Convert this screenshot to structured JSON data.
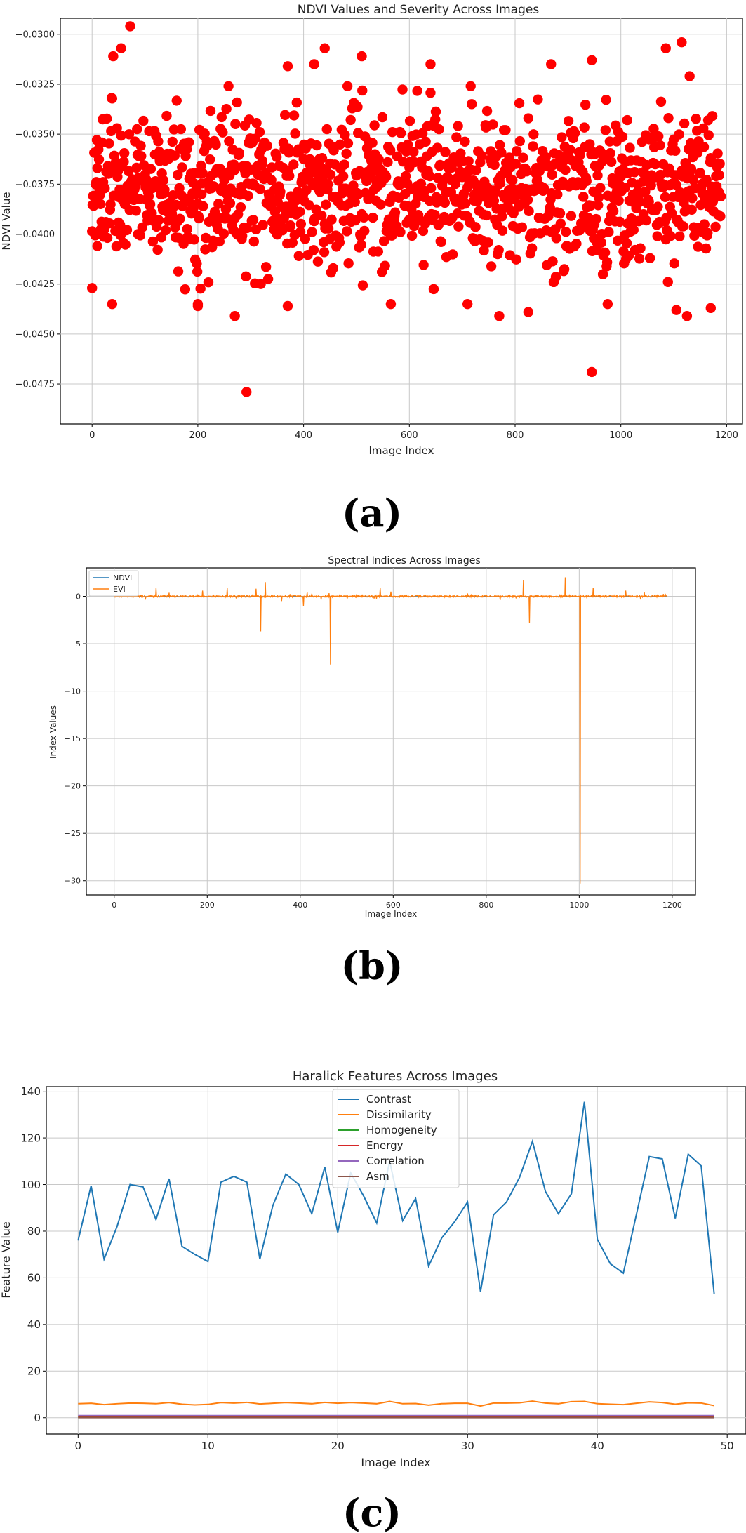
{
  "colors": {
    "ndvi_points": "#ff0000",
    "ndvi_line": "#1f77b4",
    "evi_line": "#ff7f0e",
    "contrast": "#1f77b4",
    "dissimilarity": "#ff7f0e",
    "homogeneity": "#2ca02c",
    "energy": "#d62728",
    "correlation": "#9467bd",
    "asm": "#8c564b"
  },
  "chart_data": [
    {
      "type": "scatter",
      "label": "(a)",
      "title": "NDVI Values and Severity Across Images",
      "xlabel": "Image Index",
      "ylabel": "NDVI Value",
      "xlim": [
        -60,
        1230
      ],
      "ylim": [
        -0.0495,
        -0.0292
      ],
      "xticks": [
        0,
        200,
        400,
        600,
        800,
        1000,
        1200
      ],
      "yticks": [
        -0.0475,
        -0.045,
        -0.0425,
        -0.04,
        -0.0375,
        -0.035,
        -0.0325,
        -0.03
      ],
      "ytick_labels": [
        "−0.0475",
        "−0.0450",
        "−0.0425",
        "−0.0400",
        "−0.0375",
        "−0.0350",
        "−0.0325",
        "−0.0300"
      ],
      "grid": true,
      "n_points": 1190,
      "points_summary": "dense cloud, mostly between -0.0425 and -0.0330, centered near -0.0375",
      "notable_points": [
        {
          "x": 72,
          "y": -0.0296
        },
        {
          "x": 1115,
          "y": -0.0304
        },
        {
          "x": 55,
          "y": -0.0307
        },
        {
          "x": 440,
          "y": -0.0307
        },
        {
          "x": 1085,
          "y": -0.0307
        },
        {
          "x": 40,
          "y": -0.0311
        },
        {
          "x": 510,
          "y": -0.0311
        },
        {
          "x": 945,
          "y": -0.0313
        },
        {
          "x": 420,
          "y": -0.0315
        },
        {
          "x": 640,
          "y": -0.0315
        },
        {
          "x": 868,
          "y": -0.0315
        },
        {
          "x": 370,
          "y": -0.0316
        },
        {
          "x": 1130,
          "y": -0.0321
        },
        {
          "x": 292,
          "y": -0.0479
        },
        {
          "x": 945,
          "y": -0.0469
        },
        {
          "x": 270,
          "y": -0.0441
        },
        {
          "x": 770,
          "y": -0.0441
        },
        {
          "x": 1125,
          "y": -0.0441
        },
        {
          "x": 825,
          "y": -0.0439
        },
        {
          "x": 1105,
          "y": -0.0438
        },
        {
          "x": 1170,
          "y": -0.0437
        },
        {
          "x": 370,
          "y": -0.0436
        },
        {
          "x": 38,
          "y": -0.0435
        },
        {
          "x": 200,
          "y": -0.0435
        },
        {
          "x": 565,
          "y": -0.0435
        },
        {
          "x": 710,
          "y": -0.0435
        },
        {
          "x": 975,
          "y": -0.0435
        },
        {
          "x": 0,
          "y": -0.0427
        },
        {
          "x": 200,
          "y": -0.0436
        },
        {
          "x": 10,
          "y": -0.0406
        }
      ]
    },
    {
      "type": "line",
      "label": "(b)",
      "title": "Spectral Indices Across Images",
      "xlabel": "Image Index",
      "ylabel": "Index Values",
      "xlim": [
        -60,
        1250
      ],
      "ylim": [
        -31.5,
        3.0
      ],
      "xticks": [
        0,
        200,
        400,
        600,
        800,
        1000,
        1200
      ],
      "yticks": [
        -30,
        -25,
        -20,
        -15,
        -10,
        -5,
        0
      ],
      "ytick_labels": [
        "−30",
        "−25",
        "−20",
        "−15",
        "−10",
        "−5",
        "0"
      ],
      "grid": true,
      "legend": "top-left",
      "series": [
        {
          "name": "NDVI",
          "baseline": -0.04
        },
        {
          "name": "EVI",
          "baseline": 0.0,
          "spikes": [
            {
              "x": 90,
              "y": 0.9
            },
            {
              "x": 190,
              "y": 0.6
            },
            {
              "x": 243,
              "y": 0.9
            },
            {
              "x": 305,
              "y": 0.8
            },
            {
              "x": 315,
              "y": -3.7
            },
            {
              "x": 325,
              "y": 1.5
            },
            {
              "x": 360,
              "y": -0.5
            },
            {
              "x": 407,
              "y": -1.0
            },
            {
              "x": 415,
              "y": 0.4
            },
            {
              "x": 465,
              "y": -7.2
            },
            {
              "x": 572,
              "y": 0.9
            },
            {
              "x": 595,
              "y": 0.5
            },
            {
              "x": 760,
              "y": 0.3
            },
            {
              "x": 830,
              "y": -0.4
            },
            {
              "x": 880,
              "y": 1.7
            },
            {
              "x": 893,
              "y": -2.8
            },
            {
              "x": 970,
              "y": 2.0
            },
            {
              "x": 1002,
              "y": -30.3
            },
            {
              "x": 1030,
              "y": 0.9
            },
            {
              "x": 1100,
              "y": 0.6
            },
            {
              "x": 1140,
              "y": 0.4
            }
          ]
        }
      ]
    },
    {
      "type": "line",
      "label": "(c)",
      "title": "Haralick Features Across Images",
      "xlabel": "Image Index",
      "ylabel": "Feature Value",
      "xlim": [
        -2.45,
        51.45
      ],
      "ylim": [
        -7,
        142
      ],
      "xticks": [
        0,
        10,
        20,
        30,
        40,
        50
      ],
      "yticks": [
        0,
        20,
        40,
        60,
        80,
        100,
        120,
        140
      ],
      "grid": true,
      "legend": "top-center",
      "x": [
        0,
        1,
        2,
        3,
        4,
        5,
        6,
        7,
        8,
        9,
        10,
        11,
        12,
        13,
        14,
        15,
        16,
        17,
        18,
        19,
        20,
        21,
        22,
        23,
        24,
        25,
        26,
        27,
        28,
        29,
        30,
        31,
        32,
        33,
        34,
        35,
        36,
        37,
        38,
        39,
        40,
        41,
        42,
        43,
        44,
        45,
        46,
        47,
        48,
        49
      ],
      "series": [
        {
          "name": "Contrast",
          "values": [
            76,
            99.5,
            68,
            82,
            100,
            99,
            85,
            102.5,
            73.5,
            70,
            67,
            101,
            103.5,
            101,
            68,
            91,
            104.5,
            100,
            87.5,
            107.5,
            79.5,
            105,
            95,
            83.5,
            110,
            84.5,
            94,
            65,
            77,
            84,
            92.5,
            54,
            87,
            92.5,
            103,
            118.5,
            97,
            87.5,
            96,
            135.5,
            76.5,
            66,
            62,
            87,
            112,
            111,
            85.5,
            113,
            108,
            53
          ]
        },
        {
          "name": "Dissimilarity",
          "values": [
            6,
            6.2,
            5.6,
            6,
            6.3,
            6.2,
            6,
            6.5,
            5.8,
            5.5,
            5.7,
            6.5,
            6.3,
            6.6,
            5.9,
            6.2,
            6.5,
            6.3,
            6,
            6.6,
            6.2,
            6.5,
            6.3,
            6,
            7,
            6,
            6.1,
            5.4,
            6,
            6.2,
            6.2,
            5,
            6.3,
            6.3,
            6.4,
            7.1,
            6.3,
            6,
            6.9,
            7,
            6,
            5.8,
            5.6,
            6.2,
            6.8,
            6.5,
            5.8,
            6.4,
            6.3,
            5.2
          ]
        },
        {
          "name": "Homogeneity",
          "values": [
            0.4,
            0.4,
            0.4,
            0.4,
            0.4,
            0.4,
            0.4,
            0.4,
            0.4,
            0.4,
            0.4,
            0.4,
            0.4,
            0.4,
            0.4,
            0.4,
            0.4,
            0.4,
            0.4,
            0.4,
            0.4,
            0.4,
            0.4,
            0.4,
            0.4,
            0.4,
            0.4,
            0.4,
            0.4,
            0.4,
            0.4,
            0.4,
            0.4,
            0.4,
            0.4,
            0.4,
            0.4,
            0.4,
            0.4,
            0.4,
            0.4,
            0.4,
            0.4,
            0.4,
            0.4,
            0.4,
            0.4,
            0.4,
            0.4,
            0.4
          ]
        },
        {
          "name": "Energy",
          "values": [
            0.2,
            0.2,
            0.2,
            0.2,
            0.2,
            0.2,
            0.2,
            0.2,
            0.2,
            0.2,
            0.2,
            0.2,
            0.2,
            0.2,
            0.2,
            0.2,
            0.2,
            0.2,
            0.2,
            0.2,
            0.2,
            0.2,
            0.2,
            0.2,
            0.2,
            0.2,
            0.2,
            0.2,
            0.2,
            0.2,
            0.2,
            0.2,
            0.2,
            0.2,
            0.2,
            0.2,
            0.2,
            0.2,
            0.2,
            0.2,
            0.2,
            0.2,
            0.2,
            0.2,
            0.2,
            0.2,
            0.2,
            0.2,
            0.2,
            0.2
          ]
        },
        {
          "name": "Correlation",
          "values": [
            0.9,
            0.9,
            0.9,
            0.9,
            0.9,
            0.9,
            0.9,
            0.9,
            0.9,
            0.9,
            0.9,
            0.9,
            0.9,
            0.9,
            0.9,
            0.9,
            0.9,
            0.9,
            0.9,
            0.9,
            0.9,
            0.9,
            0.9,
            0.9,
            0.9,
            0.9,
            0.9,
            0.9,
            0.9,
            0.9,
            0.9,
            0.9,
            0.9,
            0.9,
            0.9,
            0.9,
            0.9,
            0.9,
            0.9,
            0.9,
            0.9,
            0.9,
            0.9,
            0.9,
            0.9,
            0.9,
            0.9,
            0.9,
            0.9,
            0.9
          ]
        },
        {
          "name": "Asm",
          "values": [
            0.05,
            0.05,
            0.05,
            0.05,
            0.05,
            0.05,
            0.05,
            0.05,
            0.05,
            0.05,
            0.05,
            0.05,
            0.05,
            0.05,
            0.05,
            0.05,
            0.05,
            0.05,
            0.05,
            0.05,
            0.05,
            0.05,
            0.05,
            0.05,
            0.05,
            0.05,
            0.05,
            0.05,
            0.05,
            0.05,
            0.05,
            0.05,
            0.05,
            0.05,
            0.05,
            0.05,
            0.05,
            0.05,
            0.05,
            0.05,
            0.05,
            0.05,
            0.05,
            0.05,
            0.05,
            0.05,
            0.05,
            0.05,
            0.05,
            0.05
          ]
        }
      ]
    }
  ]
}
